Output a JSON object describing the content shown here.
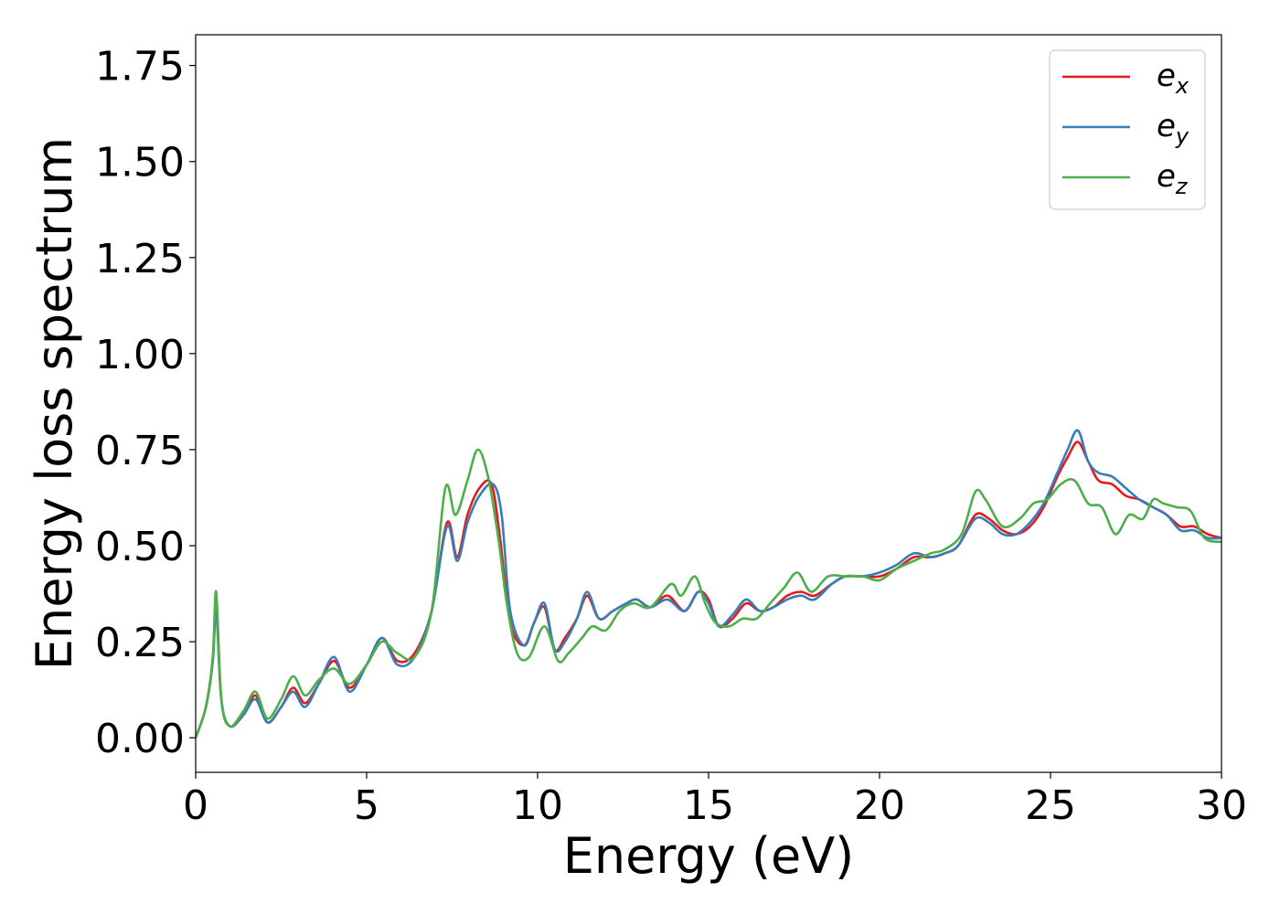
{
  "chart_data": {
    "type": "line",
    "title": "",
    "xlabel": "Energy (eV)",
    "ylabel": "Energy loss spectrum",
    "xlim": [
      0,
      30
    ],
    "ylim": [
      -0.09,
      1.83
    ],
    "xticks": [
      0,
      5,
      10,
      15,
      20,
      25,
      30
    ],
    "xtick_labels": [
      "0",
      "5",
      "10",
      "15",
      "20",
      "25",
      "30"
    ],
    "yticks": [
      0.0,
      0.25,
      0.5,
      0.75,
      1.0,
      1.25,
      1.5,
      1.75
    ],
    "ytick_labels": [
      "0.00",
      "0.25",
      "0.50",
      "0.75",
      "1.00",
      "1.25",
      "1.50",
      "1.75"
    ],
    "grid": false,
    "legend_position": "top-right",
    "series": [
      {
        "name": "e_x",
        "legend_main": "e",
        "legend_sub": "x",
        "color": "#e41a1c",
        "x": [
          0,
          0.3,
          0.5,
          0.6,
          0.75,
          1.0,
          1.4,
          1.75,
          2.1,
          2.5,
          2.85,
          3.2,
          3.6,
          4.05,
          4.5,
          5.0,
          5.45,
          5.9,
          6.4,
          6.9,
          7.35,
          7.65,
          7.95,
          8.3,
          8.65,
          8.9,
          9.2,
          9.6,
          9.9,
          10.2,
          10.5,
          10.8,
          11.15,
          11.45,
          11.8,
          12.2,
          12.6,
          12.9,
          13.3,
          13.8,
          14.3,
          14.7,
          15.0,
          15.3,
          15.7,
          16.1,
          16.5,
          16.9,
          17.3,
          17.7,
          18.1,
          18.6,
          19.0,
          19.5,
          20.0,
          20.5,
          21.0,
          21.5,
          21.9,
          22.3,
          22.8,
          23.2,
          23.6,
          24.0,
          24.4,
          24.8,
          25.2,
          25.5,
          25.8,
          26.1,
          26.4,
          26.8,
          27.2,
          27.6,
          28.0,
          28.4,
          28.8,
          29.2,
          29.6,
          30.0
        ],
        "y": [
          0.0,
          0.08,
          0.2,
          0.35,
          0.1,
          0.03,
          0.06,
          0.11,
          0.04,
          0.08,
          0.13,
          0.09,
          0.14,
          0.2,
          0.13,
          0.19,
          0.26,
          0.2,
          0.22,
          0.33,
          0.56,
          0.47,
          0.58,
          0.65,
          0.66,
          0.52,
          0.3,
          0.24,
          0.3,
          0.34,
          0.23,
          0.26,
          0.31,
          0.37,
          0.31,
          0.33,
          0.35,
          0.36,
          0.34,
          0.37,
          0.33,
          0.38,
          0.36,
          0.29,
          0.31,
          0.35,
          0.33,
          0.34,
          0.37,
          0.38,
          0.37,
          0.4,
          0.42,
          0.42,
          0.42,
          0.44,
          0.47,
          0.47,
          0.48,
          0.5,
          0.58,
          0.57,
          0.54,
          0.53,
          0.55,
          0.6,
          0.68,
          0.73,
          0.77,
          0.72,
          0.67,
          0.66,
          0.63,
          0.62,
          0.6,
          0.58,
          0.55,
          0.55,
          0.53,
          0.52
        ]
      },
      {
        "name": "e_y",
        "legend_main": "e",
        "legend_sub": "y",
        "color": "#377eb8",
        "x": [
          0,
          0.3,
          0.5,
          0.6,
          0.75,
          1.0,
          1.4,
          1.75,
          2.1,
          2.5,
          2.85,
          3.2,
          3.6,
          4.05,
          4.5,
          5.0,
          5.45,
          5.9,
          6.4,
          6.9,
          7.35,
          7.65,
          7.95,
          8.3,
          8.7,
          8.95,
          9.2,
          9.6,
          9.9,
          10.2,
          10.5,
          10.8,
          11.15,
          11.45,
          11.8,
          12.2,
          12.6,
          12.9,
          13.3,
          13.8,
          14.3,
          14.7,
          15.0,
          15.3,
          15.7,
          16.1,
          16.5,
          16.9,
          17.3,
          17.7,
          18.1,
          18.6,
          19.0,
          19.5,
          20.0,
          20.5,
          21.0,
          21.5,
          21.9,
          22.3,
          22.8,
          23.2,
          23.6,
          24.0,
          24.4,
          24.8,
          25.2,
          25.5,
          25.8,
          26.1,
          26.4,
          26.8,
          27.2,
          27.6,
          28.0,
          28.4,
          28.8,
          29.2,
          29.6,
          30.0
        ],
        "y": [
          0.0,
          0.08,
          0.2,
          0.33,
          0.1,
          0.03,
          0.06,
          0.1,
          0.04,
          0.08,
          0.12,
          0.08,
          0.14,
          0.21,
          0.12,
          0.19,
          0.26,
          0.19,
          0.21,
          0.33,
          0.55,
          0.46,
          0.56,
          0.63,
          0.66,
          0.58,
          0.33,
          0.24,
          0.3,
          0.35,
          0.23,
          0.25,
          0.31,
          0.38,
          0.31,
          0.33,
          0.35,
          0.36,
          0.34,
          0.36,
          0.33,
          0.38,
          0.35,
          0.29,
          0.32,
          0.36,
          0.33,
          0.34,
          0.36,
          0.37,
          0.36,
          0.4,
          0.42,
          0.42,
          0.43,
          0.45,
          0.48,
          0.47,
          0.48,
          0.5,
          0.57,
          0.56,
          0.53,
          0.53,
          0.56,
          0.61,
          0.69,
          0.75,
          0.8,
          0.72,
          0.69,
          0.68,
          0.65,
          0.62,
          0.6,
          0.58,
          0.54,
          0.54,
          0.52,
          0.52
        ]
      },
      {
        "name": "e_z",
        "legend_main": "e",
        "legend_sub": "z",
        "color": "#4daf4a",
        "x": [
          0,
          0.3,
          0.5,
          0.6,
          0.75,
          1.0,
          1.4,
          1.75,
          2.1,
          2.5,
          2.85,
          3.2,
          3.6,
          4.05,
          4.5,
          5.0,
          5.45,
          5.9,
          6.4,
          6.9,
          7.3,
          7.6,
          7.95,
          8.25,
          8.55,
          8.85,
          9.1,
          9.4,
          9.75,
          10.2,
          10.6,
          10.9,
          11.3,
          11.6,
          12.0,
          12.4,
          12.8,
          13.3,
          13.9,
          14.2,
          14.6,
          14.9,
          15.2,
          15.6,
          16.0,
          16.4,
          16.8,
          17.2,
          17.6,
          18.0,
          18.5,
          19.0,
          19.5,
          20.0,
          20.5,
          21.0,
          21.5,
          21.9,
          22.4,
          22.8,
          23.1,
          23.6,
          24.1,
          24.5,
          24.9,
          25.3,
          25.7,
          26.1,
          26.5,
          26.9,
          27.3,
          27.7,
          28.0,
          28.3,
          28.7,
          29.1,
          29.5,
          30.0
        ],
        "y": [
          0.0,
          0.08,
          0.21,
          0.38,
          0.1,
          0.03,
          0.07,
          0.12,
          0.05,
          0.1,
          0.16,
          0.11,
          0.15,
          0.18,
          0.14,
          0.19,
          0.25,
          0.22,
          0.21,
          0.33,
          0.65,
          0.58,
          0.67,
          0.75,
          0.68,
          0.52,
          0.35,
          0.22,
          0.21,
          0.29,
          0.2,
          0.22,
          0.26,
          0.29,
          0.28,
          0.33,
          0.35,
          0.34,
          0.4,
          0.37,
          0.42,
          0.35,
          0.3,
          0.29,
          0.31,
          0.31,
          0.35,
          0.39,
          0.43,
          0.38,
          0.42,
          0.42,
          0.42,
          0.41,
          0.44,
          0.46,
          0.48,
          0.49,
          0.53,
          0.64,
          0.62,
          0.55,
          0.57,
          0.61,
          0.62,
          0.66,
          0.67,
          0.61,
          0.6,
          0.53,
          0.58,
          0.57,
          0.62,
          0.61,
          0.6,
          0.59,
          0.52,
          0.51
        ]
      }
    ]
  }
}
